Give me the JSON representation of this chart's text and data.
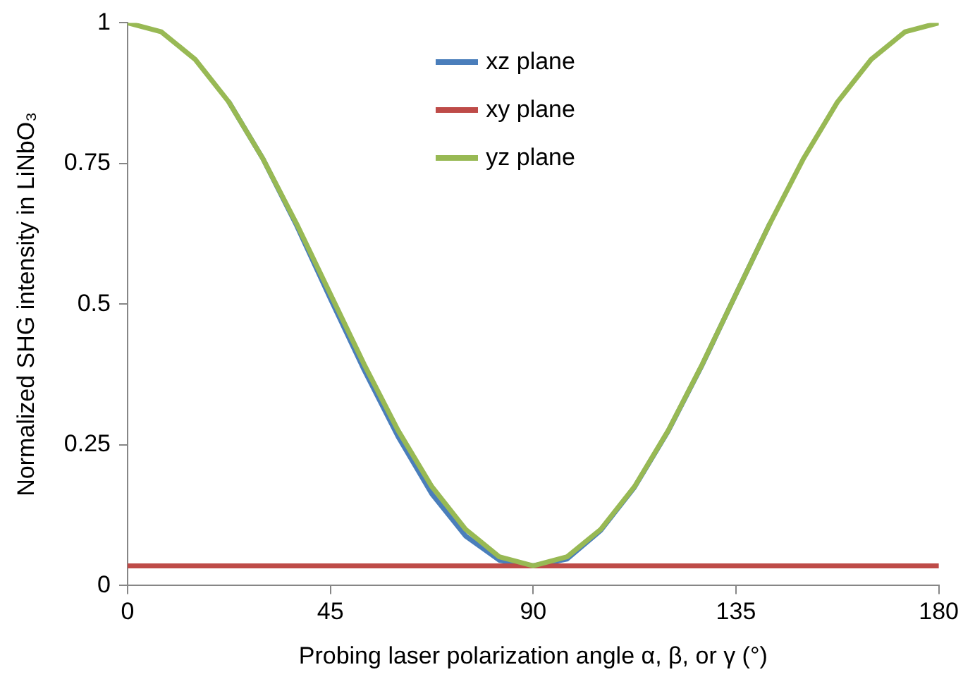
{
  "chart_data": {
    "type": "line",
    "xlabel": "Probing laser polarization angle α, β, or γ (°)",
    "ylabel": "Normalized SHG intensity in LiNbO₃",
    "x": [
      0,
      7.5,
      15,
      22.5,
      30,
      37.5,
      45,
      52.5,
      60,
      67.5,
      75,
      82.5,
      90,
      97.5,
      105,
      112.5,
      120,
      127.5,
      135,
      142.5,
      150,
      157.5,
      165,
      172.5,
      180
    ],
    "xlim": [
      0,
      180
    ],
    "xticks": [
      0,
      45,
      90,
      135,
      180
    ],
    "ylim": [
      0,
      1
    ],
    "yticks": [
      0,
      0.25,
      0.5,
      0.75,
      1
    ],
    "grid": false,
    "legend": "top",
    "marker": "none",
    "line_style": "solid",
    "series": [
      {
        "name": "xz plane",
        "color": "#4a7ebb",
        "values": [
          null,
          null,
          null,
          0.859,
          0.759,
          0.64,
          0.51,
          0.383,
          0.265,
          0.163,
          0.088,
          0.045,
          0.035,
          0.047,
          0.098,
          0.175,
          0.275,
          0.392,
          0.518,
          0.643,
          null,
          null,
          null,
          null,
          null
        ]
      },
      {
        "name": "xy plane",
        "color": "#be4b48",
        "values": [
          0.035,
          0.035,
          0.035,
          0.035,
          0.035,
          0.035,
          0.035,
          0.035,
          0.035,
          0.035,
          0.035,
          0.035,
          0.035,
          0.035,
          0.035,
          0.035,
          0.035,
          0.035,
          0.035,
          0.035,
          0.035,
          0.035,
          0.035,
          0.035,
          0.035
        ]
      },
      {
        "name": "yz plane",
        "color": "#98b954",
        "values": [
          1,
          0.984,
          0.935,
          0.859,
          0.759,
          0.643,
          0.518,
          0.393,
          0.276,
          0.176,
          0.1,
          0.051,
          0.035,
          0.051,
          0.1,
          0.176,
          0.276,
          0.393,
          0.518,
          0.643,
          0.759,
          0.859,
          0.935,
          0.984,
          1
        ]
      }
    ]
  }
}
